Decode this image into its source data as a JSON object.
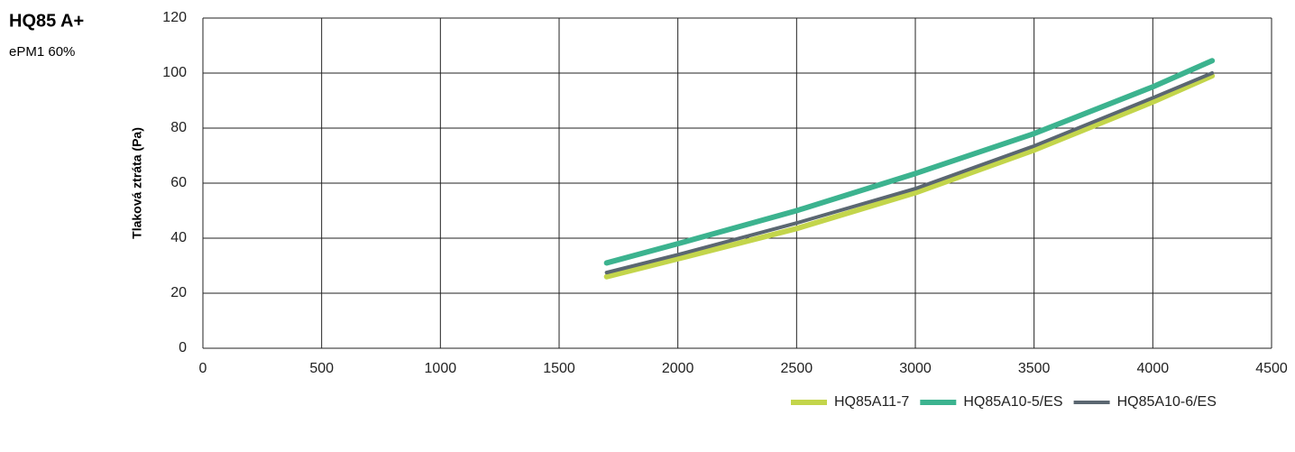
{
  "chart_data": {
    "type": "line",
    "title": "HQ85 A+",
    "subtitle": "ePM1 60%",
    "y_label": "Tlaková ztráta (Pa)",
    "x": [
      1700,
      2000,
      2500,
      3000,
      3500,
      4000,
      4250
    ],
    "series": [
      {
        "name": "HQ85A11-7",
        "color": "#c3d54b",
        "values": [
          26,
          32.5,
          43.5,
          56.5,
          72,
          89.5,
          99
        ]
      },
      {
        "name": "HQ85A10-5/ES",
        "color": "#3cb38f",
        "values": [
          31,
          38,
          50,
          63.5,
          78,
          95,
          104.5
        ]
      },
      {
        "name": "HQ85A10-6/ES",
        "color": "#5b6771",
        "values": [
          27.5,
          34,
          45.5,
          58,
          73.5,
          91,
          100
        ]
      }
    ],
    "xlim": [
      0,
      4500
    ],
    "xticks": [
      0,
      500,
      1000,
      1500,
      2000,
      2500,
      3000,
      3500,
      4000,
      4500
    ],
    "ylim": [
      0,
      120
    ],
    "yticks": [
      0,
      20,
      40,
      60,
      80,
      100,
      120
    ],
    "grid": true,
    "legend": "bottom-right"
  }
}
